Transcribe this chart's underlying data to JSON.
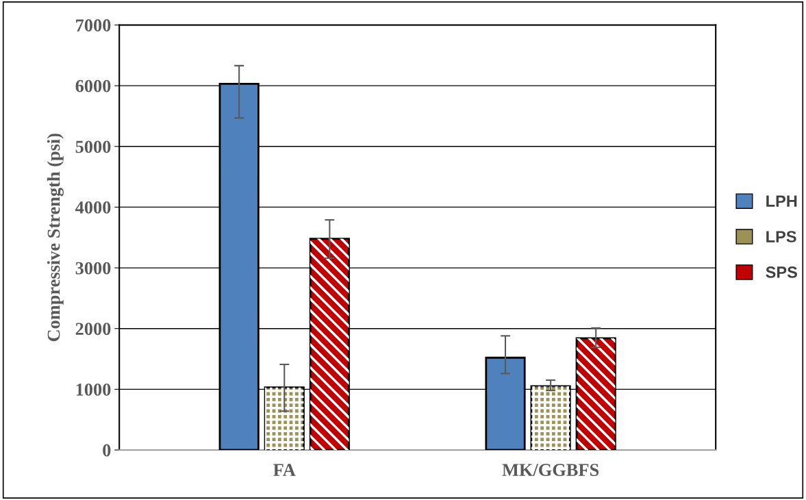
{
  "chart_data": {
    "type": "bar",
    "ylabel": "Compressive Strength (psi)",
    "categories": [
      "FA",
      "MK/GGBFS"
    ],
    "series": [
      {
        "name": "LPH",
        "color": "#4f81bd",
        "values": [
          6030,
          1520
        ],
        "errors": [
          [
            5470,
            6330
          ],
          [
            1260,
            1880
          ]
        ]
      },
      {
        "name": "LPS",
        "color": "#9c9256",
        "values": [
          1030,
          1050
        ],
        "errors": [
          [
            640,
            1410
          ],
          [
            980,
            1150
          ]
        ]
      },
      {
        "name": "SPS",
        "color": "#c00000",
        "values": [
          3480,
          1840
        ],
        "errors": [
          [
            3160,
            3790
          ],
          [
            1690,
            2010
          ]
        ]
      }
    ],
    "ylim": [
      0,
      7000
    ],
    "yticks": [
      0,
      1000,
      2000,
      3000,
      4000,
      5000,
      6000,
      7000
    ],
    "grid": "y",
    "legend": "right"
  }
}
